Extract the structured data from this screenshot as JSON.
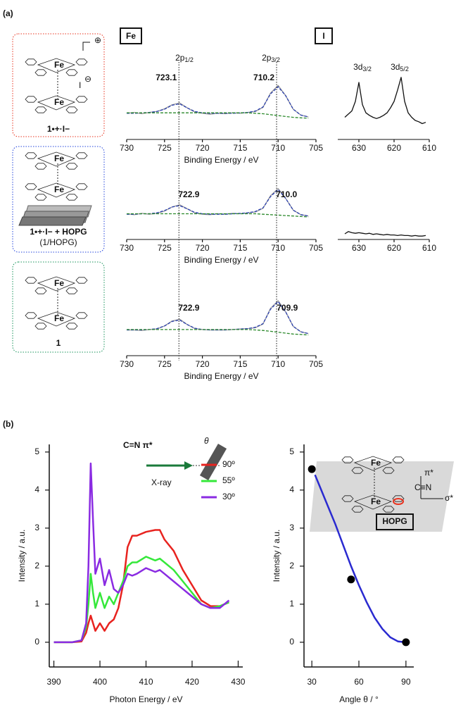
{
  "panel_labels": [
    "(a)",
    "(b)"
  ],
  "section_labels": [
    "Fe",
    "I"
  ],
  "peak_names": [
    {
      "main": "2p",
      "sub": "1/2"
    },
    {
      "main": "2p",
      "sub": "3/2"
    },
    {
      "main": "3d",
      "sub": "3/2"
    },
    {
      "main": "3d",
      "sub": "5/2"
    }
  ],
  "molecules": [
    {
      "metal": "Fe",
      "metal_color": "#1f3fd6",
      "charge": "⊕",
      "anion": "I",
      "anion_charge": "⊖",
      "label": "1•+·I−"
    },
    {
      "metal": "Fe",
      "metal_color": "#e8321e",
      "label": "1•+·I− + HOPG",
      "sublabel": "(1/HOPG)"
    },
    {
      "metal": "Fe",
      "metal_color": "#e8321e",
      "label": "1"
    }
  ],
  "chart_data": [
    {
      "type": "line",
      "x": [
        730,
        729,
        728,
        727,
        726,
        725,
        724,
        723,
        722,
        721,
        720,
        719,
        718,
        717,
        716,
        715,
        714,
        713,
        712,
        711,
        710,
        709,
        708,
        707,
        706
      ],
      "xlim": [
        730,
        705
      ],
      "xticks": [
        730,
        725,
        720,
        715,
        710,
        705
      ],
      "ylim": [
        -0.25,
        1
      ],
      "xlabel": "Binding Energy / eV",
      "peak_labels": [
        723.1,
        710.2
      ],
      "peak_label_color": "#e8321e",
      "series": [
        {
          "color": "#9a9a9a",
          "values": [
            0.33,
            0.35,
            0.32,
            0.35,
            0.37,
            0.43,
            0.52,
            0.56,
            0.45,
            0.36,
            0.33,
            0.31,
            0.33,
            0.32,
            0.34,
            0.33,
            0.35,
            0.37,
            0.46,
            0.78,
            0.95,
            0.72,
            0.42,
            0.29,
            0.25
          ]
        },
        {
          "color": "#2a3fb0",
          "style": "dashed",
          "values": [
            0.33,
            0.33,
            0.34,
            0.35,
            0.37,
            0.42,
            0.51,
            0.54,
            0.45,
            0.37,
            0.34,
            0.33,
            0.33,
            0.33,
            0.33,
            0.34,
            0.35,
            0.38,
            0.47,
            0.76,
            0.92,
            0.72,
            0.42,
            0.29,
            0.25
          ]
        },
        {
          "color": "#2d8a2d",
          "style": "dashed",
          "values": [
            0.34,
            0.34,
            0.34,
            0.34,
            0.34,
            0.34,
            0.34,
            0.34,
            0.34,
            0.34,
            0.34,
            0.34,
            0.34,
            0.34,
            0.34,
            0.34,
            0.34,
            0.33,
            0.32,
            0.3,
            0.28,
            0.26,
            0.24,
            0.23,
            0.22
          ]
        }
      ]
    },
    {
      "type": "line",
      "x": [
        730,
        729,
        728,
        727,
        726,
        725,
        724,
        723,
        722,
        721,
        720,
        719,
        718,
        717,
        716,
        715,
        714,
        713,
        712,
        711,
        710,
        709,
        708,
        707,
        706
      ],
      "xlim": [
        730,
        705
      ],
      "xticks": [
        730,
        725,
        720,
        715,
        710,
        705
      ],
      "ylim": [
        -0.25,
        1
      ],
      "xlabel": "Binding Energy / eV",
      "peak_labels": [
        722.9,
        {
          "value": 710,
          "label": "710.0"
        }
      ],
      "peak_label_color": "#2244dd",
      "series": [
        {
          "color": "#9a9a9a",
          "values": [
            0.32,
            0.3,
            0.33,
            0.31,
            0.33,
            0.38,
            0.47,
            0.52,
            0.43,
            0.34,
            0.31,
            0.3,
            0.32,
            0.31,
            0.33,
            0.32,
            0.34,
            0.36,
            0.44,
            0.72,
            0.88,
            0.66,
            0.4,
            0.3,
            0.27
          ]
        },
        {
          "color": "#2a3fb0",
          "style": "dashed",
          "values": [
            0.31,
            0.31,
            0.32,
            0.32,
            0.34,
            0.39,
            0.47,
            0.5,
            0.43,
            0.35,
            0.32,
            0.31,
            0.31,
            0.31,
            0.32,
            0.33,
            0.34,
            0.37,
            0.45,
            0.7,
            0.86,
            0.66,
            0.4,
            0.3,
            0.27
          ]
        },
        {
          "color": "#2d8a2d",
          "style": "dashed",
          "values": [
            0.32,
            0.32,
            0.32,
            0.32,
            0.32,
            0.32,
            0.32,
            0.32,
            0.32,
            0.32,
            0.32,
            0.32,
            0.32,
            0.32,
            0.32,
            0.32,
            0.32,
            0.32,
            0.31,
            0.3,
            0.29,
            0.28,
            0.27,
            0.26,
            0.25
          ]
        }
      ]
    },
    {
      "type": "line",
      "x": [
        730,
        729,
        728,
        727,
        726,
        725,
        724,
        723,
        722,
        721,
        720,
        719,
        718,
        717,
        716,
        715,
        714,
        713,
        712,
        711,
        710,
        709,
        708,
        707,
        706
      ],
      "xlim": [
        730,
        705
      ],
      "xticks": [
        730,
        725,
        720,
        715,
        710,
        705
      ],
      "ylim": [
        -0.25,
        1
      ],
      "xlabel": "Binding Energy / eV",
      "peak_labels": [
        722.9,
        709.9
      ],
      "peak_label_color": "#17935a",
      "series": [
        {
          "color": "#9a9a9a",
          "values": [
            0.32,
            0.32,
            0.31,
            0.33,
            0.34,
            0.41,
            0.52,
            0.56,
            0.44,
            0.35,
            0.33,
            0.32,
            0.32,
            0.32,
            0.33,
            0.34,
            0.35,
            0.37,
            0.45,
            0.8,
            0.97,
            0.72,
            0.4,
            0.28,
            0.24
          ]
        },
        {
          "color": "#2a3fb0",
          "style": "dashed",
          "values": [
            0.32,
            0.32,
            0.32,
            0.33,
            0.35,
            0.41,
            0.51,
            0.54,
            0.44,
            0.36,
            0.33,
            0.32,
            0.32,
            0.32,
            0.33,
            0.34,
            0.35,
            0.38,
            0.46,
            0.78,
            0.95,
            0.72,
            0.4,
            0.28,
            0.24
          ]
        },
        {
          "color": "#2d8a2d",
          "style": "dashed",
          "values": [
            0.33,
            0.33,
            0.33,
            0.33,
            0.33,
            0.33,
            0.33,
            0.33,
            0.33,
            0.33,
            0.33,
            0.33,
            0.33,
            0.33,
            0.33,
            0.33,
            0.33,
            0.32,
            0.31,
            0.29,
            0.27,
            0.25,
            0.23,
            0.22,
            0.21
          ]
        }
      ]
    },
    {
      "type": "line",
      "x": [
        634,
        633,
        632,
        631,
        630,
        629,
        628,
        627,
        626,
        625,
        624,
        623,
        622,
        621,
        620,
        619,
        618,
        617,
        616,
        615,
        614,
        613,
        612,
        611
      ],
      "xlim": [
        636,
        610
      ],
      "xticks": [
        630,
        620,
        610
      ],
      "ylim": [
        0,
        1
      ],
      "series": [
        {
          "color": "#111111",
          "values": [
            0.35,
            0.4,
            0.45,
            0.6,
            0.9,
            0.55,
            0.42,
            0.38,
            0.35,
            0.33,
            0.35,
            0.38,
            0.42,
            0.5,
            0.6,
            0.78,
            0.98,
            0.6,
            0.42,
            0.35,
            0.3,
            0.28,
            0.25,
            0.27
          ]
        }
      ]
    },
    {
      "type": "line",
      "x": [
        634,
        633,
        632,
        631,
        630,
        629,
        628,
        627,
        626,
        625,
        624,
        623,
        622,
        621,
        620,
        619,
        618,
        617,
        616,
        615,
        614,
        613,
        612,
        611
      ],
      "xlim": [
        636,
        610
      ],
      "xticks": [
        630,
        620,
        610
      ],
      "ylim": [
        0,
        1
      ],
      "series": [
        {
          "color": "#111111",
          "values": [
            0.1,
            0.14,
            0.12,
            0.11,
            0.12,
            0.11,
            0.1,
            0.11,
            0.09,
            0.1,
            0.09,
            0.08,
            0.09,
            0.08,
            0.08,
            0.07,
            0.08,
            0.07,
            0.07,
            0.06,
            0.07,
            0.06,
            0.06,
            0.07
          ]
        }
      ]
    },
    {
      "type": "line",
      "title": "C=N π*",
      "beam_label": "X-ray",
      "angle_label": "θ",
      "x": [
        390,
        392,
        394,
        396,
        397,
        397.5,
        398,
        398.5,
        399,
        400,
        401,
        402,
        403,
        404,
        405,
        406,
        407,
        408,
        410,
        412,
        413,
        414,
        416,
        418,
        420,
        422,
        424,
        426,
        428
      ],
      "xlim": [
        389,
        431
      ],
      "xticks": [
        390,
        400,
        410,
        420,
        430
      ],
      "ylim": [
        -0.65,
        5.2
      ],
      "yticks": [
        0,
        1,
        2,
        3,
        4,
        5
      ],
      "xlabel": "Photon Energy / eV",
      "ylabel": "Intensity / a.u.",
      "series": [
        {
          "name": "90º",
          "color": "#e8231f",
          "values": [
            0,
            0,
            0,
            0.02,
            0.25,
            0.5,
            0.7,
            0.5,
            0.3,
            0.5,
            0.3,
            0.5,
            0.6,
            0.9,
            1.5,
            2.5,
            2.8,
            2.8,
            2.9,
            2.95,
            2.95,
            2.7,
            2.4,
            1.9,
            1.5,
            1.1,
            0.95,
            0.95,
            1.05
          ]
        },
        {
          "name": "55º",
          "color": "#35e83a",
          "values": [
            0,
            0,
            0,
            0.05,
            0.4,
            1.0,
            1.8,
            1.3,
            0.9,
            1.3,
            0.9,
            1.2,
            1.0,
            1.3,
            1.6,
            2.0,
            2.1,
            2.1,
            2.25,
            2.15,
            2.2,
            2.1,
            1.9,
            1.6,
            1.3,
            1.0,
            0.9,
            0.95,
            1.05
          ]
        },
        {
          "name": "30º",
          "color": "#8a2be2",
          "values": [
            0,
            0,
            0,
            0.05,
            0.5,
            2.0,
            4.7,
            3.2,
            1.8,
            2.2,
            1.5,
            1.9,
            1.4,
            1.3,
            1.5,
            1.8,
            1.75,
            1.8,
            1.95,
            1.85,
            1.9,
            1.8,
            1.6,
            1.4,
            1.2,
            1.0,
            0.9,
            0.9,
            1.1
          ]
        }
      ]
    },
    {
      "type": "scatter",
      "x": [
        30,
        55,
        90
      ],
      "values": [
        4.55,
        1.65,
        0
      ],
      "color": "#000000",
      "xlim": [
        25,
        95
      ],
      "xticks": [
        30,
        60,
        90
      ],
      "ylim": [
        -0.65,
        5.2
      ],
      "yticks": [
        0,
        1,
        2,
        3,
        4,
        5
      ],
      "xlabel": "Angle θ / °",
      "ylabel": "Intensity / a.u.",
      "fit": {
        "color": "#2a2ad0",
        "x": [
          32,
          35,
          40,
          45,
          50,
          55,
          60,
          65,
          70,
          75,
          80,
          85,
          90
        ],
        "values": [
          4.4,
          4.1,
          3.6,
          3.1,
          2.55,
          2.0,
          1.5,
          1.05,
          0.65,
          0.35,
          0.13,
          0.02,
          0
        ]
      },
      "inset": {
        "metal": "Fe",
        "label": "HOPG",
        "axis_labels": [
          "π*",
          "σ*",
          "C≡N"
        ]
      }
    }
  ]
}
